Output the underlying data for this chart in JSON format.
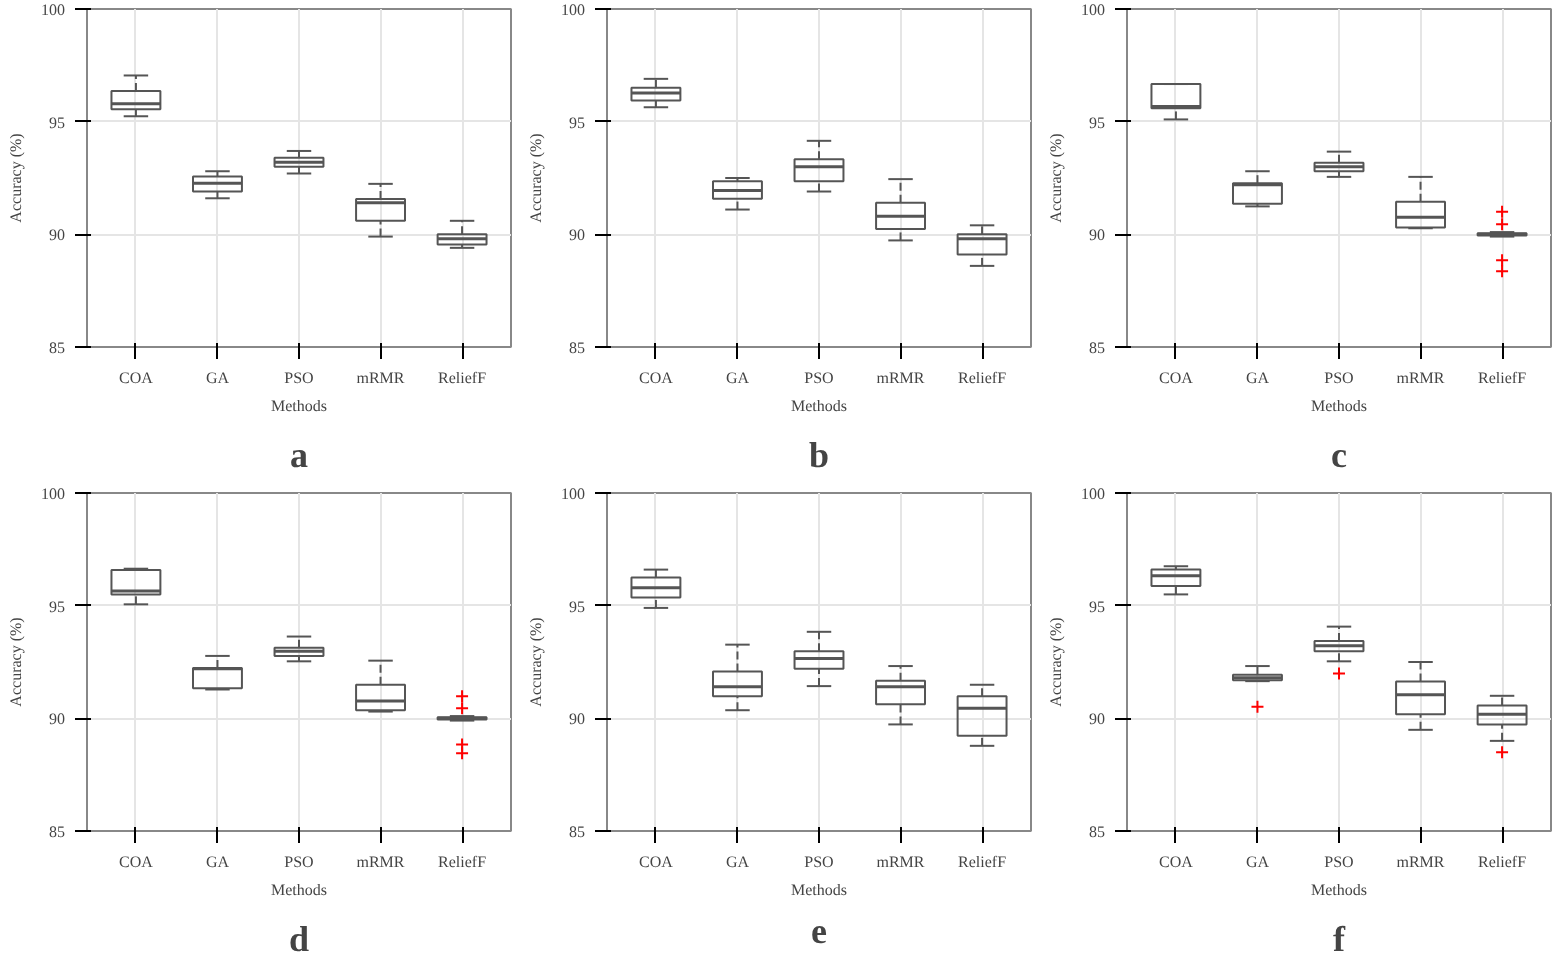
{
  "chart_data": [
    {
      "type": "box",
      "title": "a",
      "xlabel": "Methods",
      "ylabel": "Accuracy (%)",
      "categories": [
        "COA",
        "GA",
        "PSO",
        "mRMR",
        "ReliefF"
      ],
      "ylim": [
        85,
        100
      ],
      "yticks": [
        85,
        90,
        95,
        100
      ],
      "grid": true,
      "series": [
        {
          "color": "#555555",
          "boxes": [
            {
              "low": 95.24,
              "q1": 95.55,
              "median": 95.8,
              "q3": 96.36,
              "high": 97.05
            },
            {
              "low": 91.6,
              "q1": 91.9,
              "median": 92.27,
              "q3": 92.57,
              "high": 92.8
            },
            {
              "low": 92.7,
              "q1": 93.0,
              "median": 93.2,
              "q3": 93.4,
              "high": 93.7
            },
            {
              "low": 89.9,
              "q1": 90.6,
              "median": 91.4,
              "q3": 91.57,
              "high": 92.24
            },
            {
              "low": 89.4,
              "q1": 89.55,
              "median": 89.8,
              "q3": 90.0,
              "high": 90.6
            }
          ]
        }
      ]
    },
    {
      "type": "box",
      "title": "b",
      "xlabel": "Methods",
      "ylabel": "Accuracy (%)",
      "categories": [
        "COA",
        "GA",
        "PSO",
        "mRMR",
        "ReliefF"
      ],
      "ylim": [
        85,
        100
      ],
      "yticks": [
        85,
        90,
        95,
        100
      ],
      "grid": true,
      "series": [
        {
          "color": "#555555",
          "boxes": [
            {
              "low": 95.64,
              "q1": 95.94,
              "median": 96.27,
              "q3": 96.5,
              "high": 96.9
            },
            {
              "low": 91.1,
              "q1": 91.58,
              "median": 91.94,
              "q3": 92.36,
              "high": 92.5
            },
            {
              "low": 91.9,
              "q1": 92.36,
              "median": 93.0,
              "q3": 93.33,
              "high": 94.15
            },
            {
              "low": 89.73,
              "q1": 90.24,
              "median": 90.8,
              "q3": 91.4,
              "high": 92.45
            },
            {
              "low": 88.6,
              "q1": 89.1,
              "median": 89.8,
              "q3": 90.0,
              "high": 90.4
            }
          ]
        }
      ]
    },
    {
      "type": "box",
      "title": "c",
      "xlabel": "Methods",
      "ylabel": "Accuracy (%)",
      "categories": [
        "COA",
        "GA",
        "PSO",
        "mRMR",
        "ReliefF"
      ],
      "ylim": [
        85,
        100
      ],
      "yticks": [
        85,
        90,
        95,
        100
      ],
      "grid": true,
      "marker": "cross",
      "series": [
        {
          "color": "#555555",
          "boxes": [
            {
              "low": 95.1,
              "q1": 95.6,
              "median": 95.67,
              "q3": 96.67,
              "high": 96.67
            },
            {
              "low": 91.24,
              "q1": 91.36,
              "median": 92.2,
              "q3": 92.27,
              "high": 92.8
            },
            {
              "low": 92.55,
              "q1": 92.8,
              "median": 93.0,
              "q3": 93.18,
              "high": 93.67
            },
            {
              "low": 90.27,
              "q1": 90.3,
              "median": 90.76,
              "q3": 91.45,
              "high": 92.55
            },
            {
              "low": 89.9,
              "q1": 89.95,
              "median": 90.0,
              "q3": 90.05,
              "high": 90.1,
              "outliers": [
                91.0,
                90.45,
                88.85,
                88.36
              ]
            }
          ]
        }
      ]
    },
    {
      "type": "box",
      "title": "d",
      "xlabel": "Methods",
      "ylabel": "Accuracy (%)",
      "categories": [
        "COA",
        "GA",
        "PSO",
        "mRMR",
        "ReliefF"
      ],
      "ylim": [
        85,
        100
      ],
      "yticks": [
        85,
        90,
        95,
        100
      ],
      "grid": true,
      "marker": "cross",
      "series": [
        {
          "color": "#555555",
          "boxes": [
            {
              "low": 95.06,
              "q1": 95.5,
              "median": 95.65,
              "q3": 96.58,
              "high": 96.64
            },
            {
              "low": 91.28,
              "q1": 91.34,
              "median": 92.2,
              "q3": 92.23,
              "high": 92.77
            },
            {
              "low": 92.53,
              "q1": 92.77,
              "median": 92.98,
              "q3": 93.13,
              "high": 93.63
            },
            {
              "low": 90.3,
              "q1": 90.36,
              "median": 90.77,
              "q3": 91.49,
              "high": 92.56
            },
            {
              "low": 89.9,
              "q1": 89.95,
              "median": 90.0,
              "q3": 90.05,
              "high": 90.1,
              "outliers": [
                90.98,
                90.45,
                88.84,
                88.45
              ]
            }
          ]
        }
      ]
    },
    {
      "type": "box",
      "title": "e",
      "xlabel": "Methods",
      "ylabel": "Accuracy (%)",
      "categories": [
        "COA",
        "GA",
        "PSO",
        "mRMR",
        "ReliefF"
      ],
      "ylim": [
        85,
        100
      ],
      "yticks": [
        85,
        90,
        95,
        100
      ],
      "grid": true,
      "series": [
        {
          "color": "#555555",
          "boxes": [
            {
              "low": 94.9,
              "q1": 95.36,
              "median": 95.8,
              "q3": 96.25,
              "high": 96.6
            },
            {
              "low": 90.36,
              "q1": 90.98,
              "median": 91.4,
              "q3": 92.08,
              "high": 93.27
            },
            {
              "low": 91.43,
              "q1": 92.2,
              "median": 92.65,
              "q3": 92.98,
              "high": 93.84
            },
            {
              "low": 89.73,
              "q1": 90.63,
              "median": 91.4,
              "q3": 91.67,
              "high": 92.32
            },
            {
              "low": 88.78,
              "q1": 89.23,
              "median": 90.45,
              "q3": 90.98,
              "high": 91.49
            }
          ]
        }
      ]
    },
    {
      "type": "box",
      "title": "f",
      "xlabel": "Methods",
      "ylabel": "Accuracy (%)",
      "categories": [
        "COA",
        "GA",
        "PSO",
        "mRMR",
        "ReliefF"
      ],
      "ylim": [
        85,
        100
      ],
      "yticks": [
        85,
        90,
        95,
        100
      ],
      "grid": true,
      "marker": "cross",
      "series": [
        {
          "color": "#555555",
          "boxes": [
            {
              "low": 95.5,
              "q1": 95.87,
              "median": 96.33,
              "q3": 96.6,
              "high": 96.75
            },
            {
              "low": 91.65,
              "q1": 91.69,
              "median": 91.8,
              "q3": 91.93,
              "high": 92.32,
              "outliers": [
                90.51
              ]
            },
            {
              "low": 92.53,
              "q1": 92.98,
              "median": 93.22,
              "q3": 93.43,
              "high": 94.07,
              "outliers": [
                91.99
              ]
            },
            {
              "low": 89.49,
              "q1": 90.18,
              "median": 91.05,
              "q3": 91.63,
              "high": 92.5
            },
            {
              "low": 89.0,
              "q1": 89.73,
              "median": 90.18,
              "q3": 90.57,
              "high": 91.0,
              "outliers": [
                88.5
              ]
            }
          ]
        }
      ]
    }
  ]
}
